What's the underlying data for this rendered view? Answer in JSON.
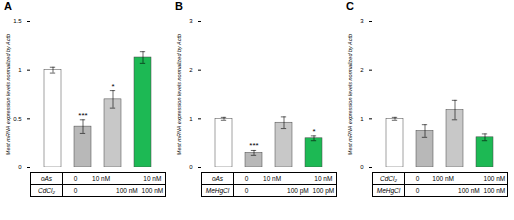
{
  "chart_data": [
    {
      "type": "bar",
      "title": "A",
      "ylabel": "Mest mRNA expression levels normalized by Actb",
      "categories": [
        null,
        null,
        null,
        null
      ],
      "values": [
        1.0,
        0.42,
        0.7,
        1.13
      ],
      "errors": [
        0.03,
        0.07,
        0.09,
        0.06
      ],
      "colors": [
        "white",
        "#b8b8b8",
        "#c8c8c8",
        "#1db954"
      ],
      "annotations": [
        null,
        "***",
        "*",
        null
      ],
      "ylim": [
        0,
        1.5
      ],
      "yticks": [
        0,
        0.5,
        1,
        1.5
      ],
      "tick_labels": "y",
      "table": [
        {
          "label": "oAs",
          "values": [
            "0",
            "10 nM",
            null,
            "10 nM"
          ]
        },
        {
          "label": "CdCl₂",
          "values": [
            "0",
            null,
            "100 nM",
            "100 nM"
          ]
        }
      ]
    },
    {
      "type": "bar",
      "title": "B",
      "ylabel": "Mest mRNA expression levels normalized by Actb",
      "categories": [
        null,
        null,
        null,
        null
      ],
      "values": [
        1.0,
        0.3,
        0.92,
        0.6
      ],
      "errors": [
        0.03,
        0.05,
        0.12,
        0.05
      ],
      "colors": [
        "white",
        "#b8b8b8",
        "#c8c8c8",
        "#1db954"
      ],
      "annotations": [
        null,
        "***",
        null,
        "*"
      ],
      "ylim": [
        0,
        3
      ],
      "yticks": [
        0,
        1,
        2,
        3
      ],
      "tick_labels": "y",
      "table": [
        {
          "label": "oAs",
          "values": [
            "0",
            "10 nM",
            null,
            "10 nM"
          ]
        },
        {
          "label": "MeHgCl",
          "values": [
            "0",
            null,
            "100 pM",
            "100 pM"
          ]
        }
      ]
    },
    {
      "type": "bar",
      "title": "C",
      "ylabel": "Mest mRNA expression levels normalized by Actb",
      "categories": [
        null,
        null,
        null,
        null
      ],
      "values": [
        1.0,
        0.75,
        1.18,
        0.62
      ],
      "errors": [
        0.03,
        0.13,
        0.2,
        0.07
      ],
      "colors": [
        "white",
        "#b8b8b8",
        "#c8c8c8",
        "#1db954"
      ],
      "annotations": [
        null,
        null,
        null,
        null
      ],
      "ylim": [
        0,
        3
      ],
      "yticks": [
        0,
        1,
        2,
        3
      ],
      "tick_labels": "y",
      "table": [
        {
          "label": "CdCl₂",
          "values": [
            "0",
            "100 nM",
            null,
            "100 nM"
          ]
        },
        {
          "label": "MeHgCl",
          "values": [
            "0",
            null,
            "100 nM",
            "100 nM"
          ]
        }
      ]
    }
  ]
}
